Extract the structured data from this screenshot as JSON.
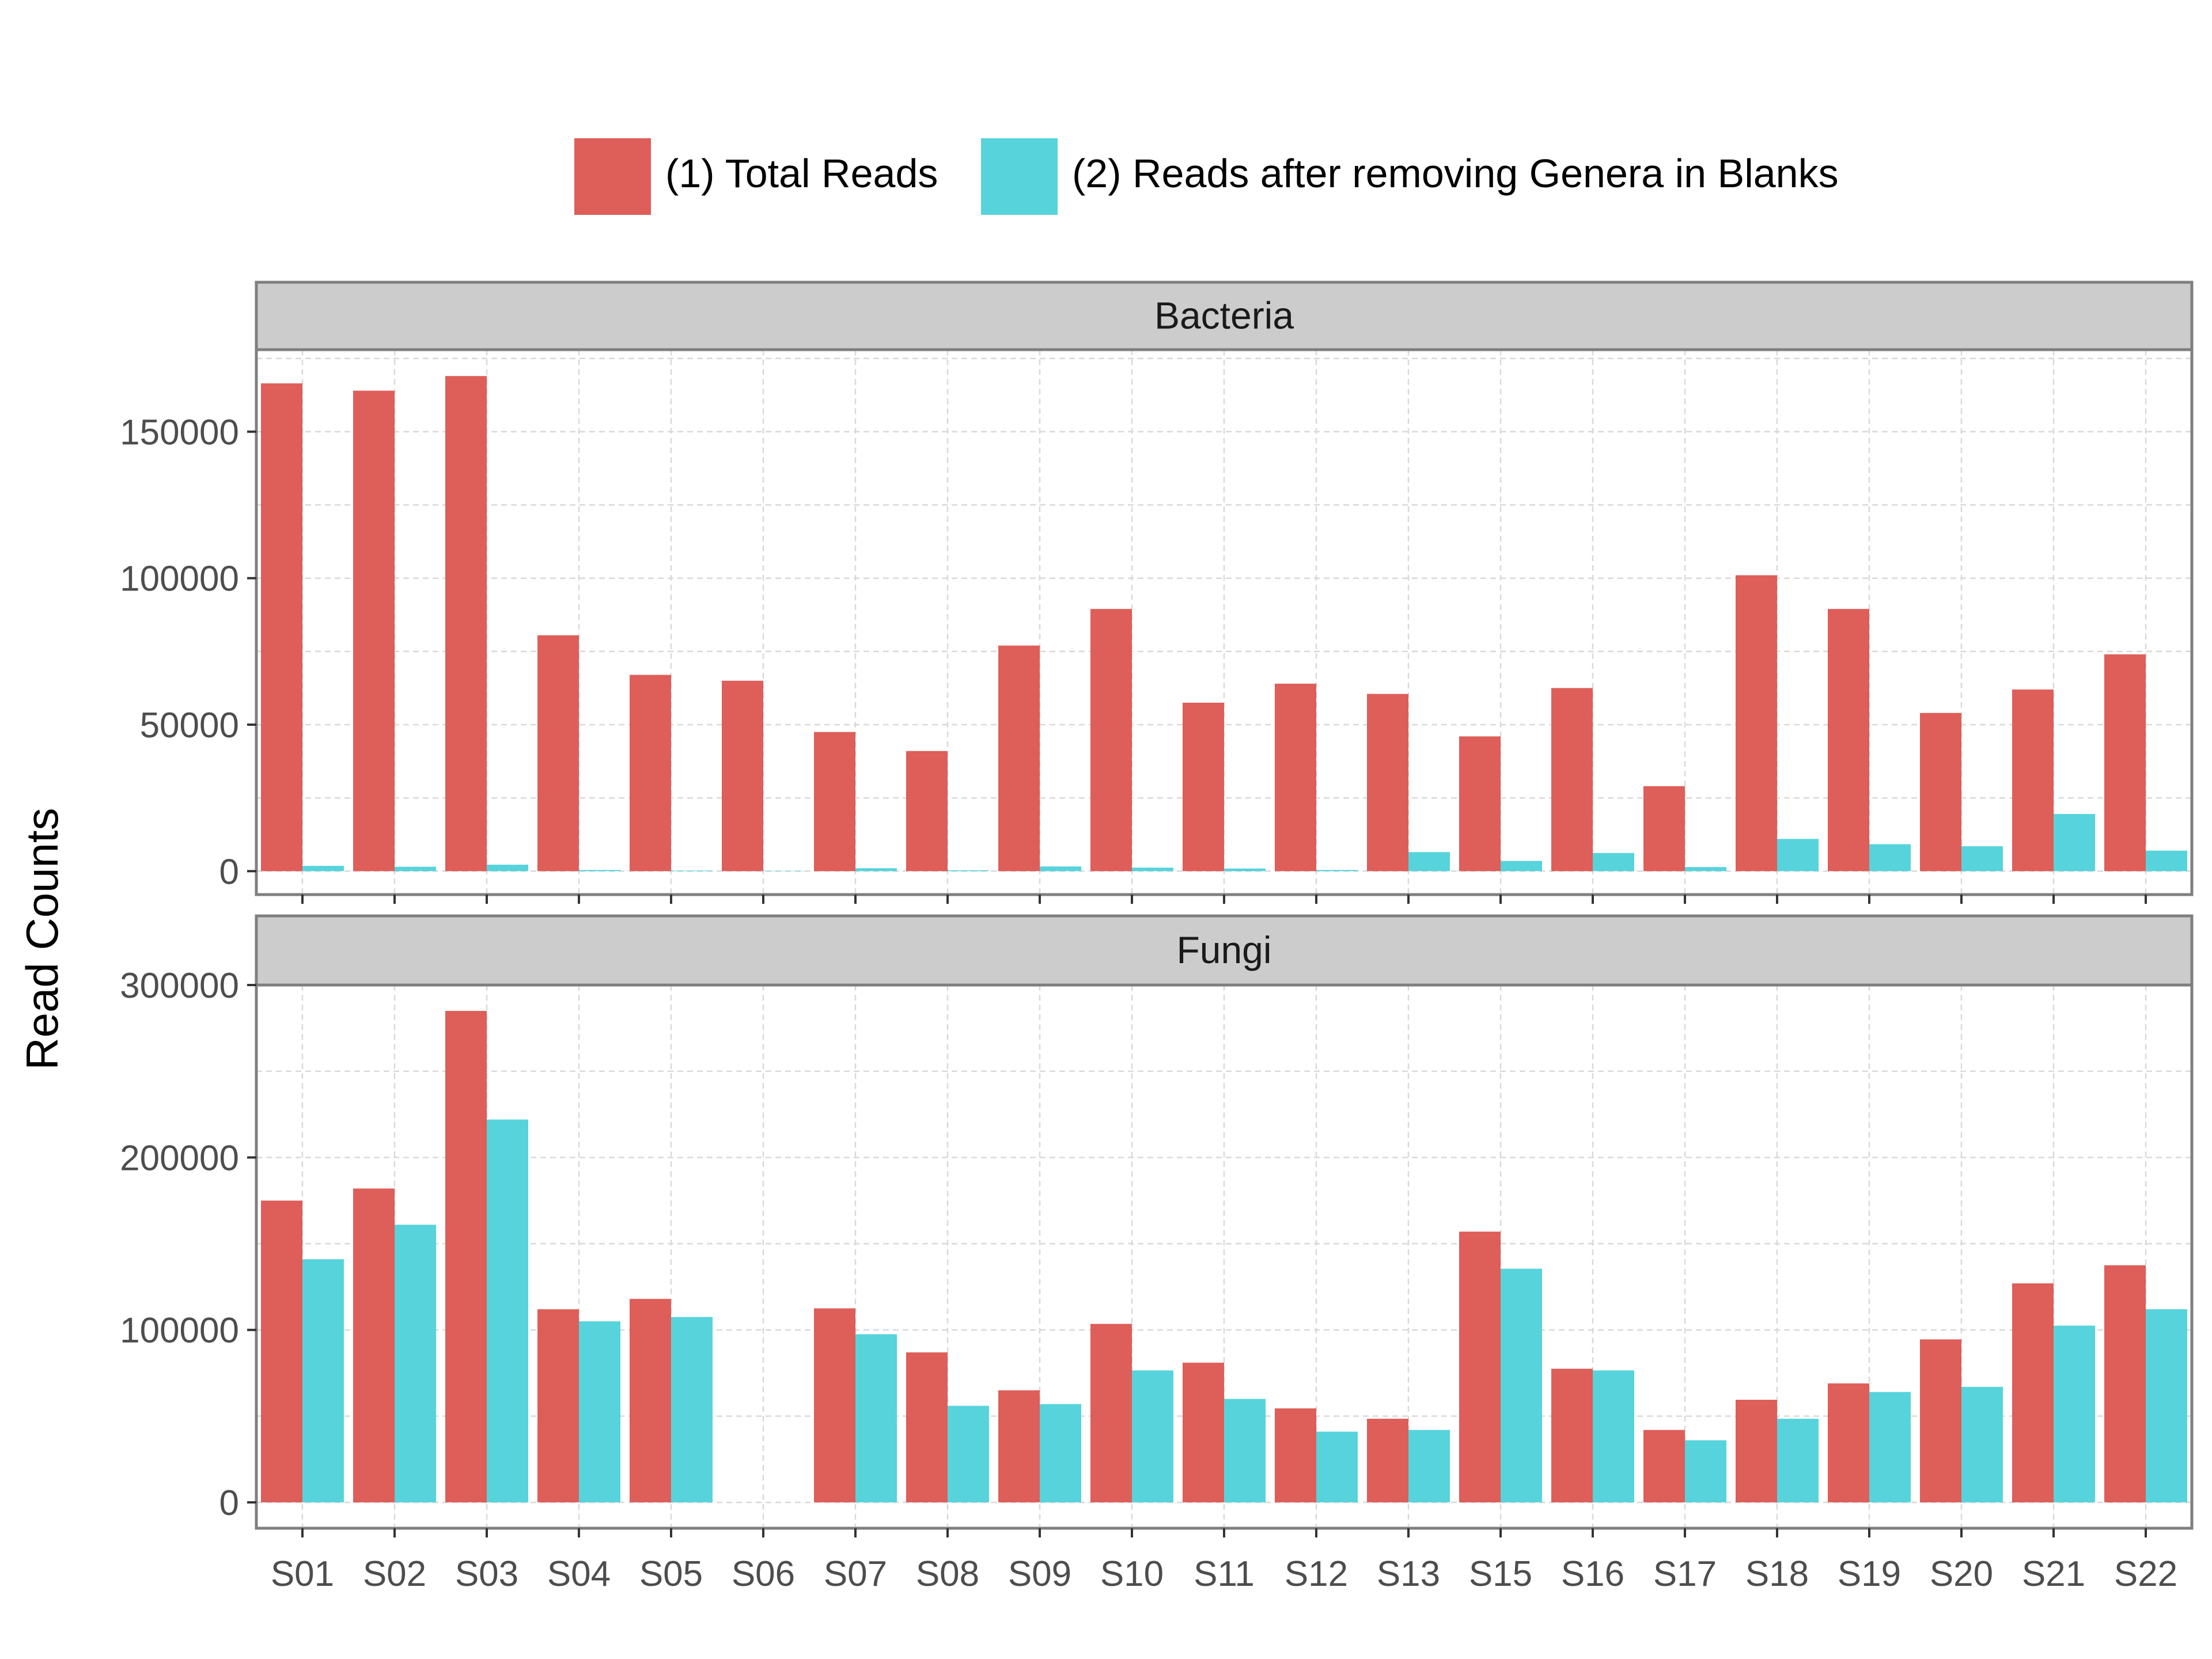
{
  "chart_data": {
    "type": "bar",
    "ylabel": "Read Counts",
    "legend": {
      "position": "top",
      "entries": [
        {
          "name": "(1) Total Reads",
          "color": "#de5e59"
        },
        {
          "name": "(2) Reads after removing Genera in Blanks",
          "color": "#57d3db"
        }
      ]
    },
    "grid": true,
    "categories": [
      "S01",
      "S02",
      "S03",
      "S04",
      "S05",
      "S06",
      "S07",
      "S08",
      "S09",
      "S10",
      "S11",
      "S12",
      "S13",
      "S15",
      "S16",
      "S17",
      "S18",
      "S19",
      "S20",
      "S21",
      "S22"
    ],
    "panels": [
      {
        "title": "Bacteria",
        "ylim": [
          -8000,
          178000
        ],
        "yticks": [
          0,
          50000,
          100000,
          150000
        ],
        "ytick_labels": [
          "0",
          "50000",
          "100000",
          "150000"
        ],
        "series": [
          {
            "name": "(1) Total Reads",
            "values": [
              166500,
              164000,
              169000,
              80500,
              67000,
              65000,
              47500,
              41000,
              77000,
              89500,
              57500,
              64000,
              60500,
              46000,
              62500,
              29000,
              101000,
              89500,
              54000,
              62000,
              74000
            ]
          },
          {
            "name": "(2) Reads after removing Genera in Blanks",
            "values": [
              1800,
              1500,
              2200,
              400,
              200,
              100,
              1000,
              300,
              1600,
              1200,
              900,
              400,
              6500,
              3500,
              6200,
              1400,
              11000,
              9200,
              8500,
              19500,
              7000
            ]
          }
        ]
      },
      {
        "title": "Fungi",
        "ylim": [
          -15000,
          300000
        ],
        "yticks": [
          0,
          100000,
          200000,
          300000
        ],
        "ytick_labels": [
          "0",
          "100000",
          "200000",
          "300000"
        ],
        "series": [
          {
            "name": "(1) Total Reads",
            "values": [
              175000,
              182000,
              285000,
              112000,
              118000,
              0,
              112500,
              87000,
              65000,
              103500,
              81000,
              54500,
              48500,
              157000,
              77500,
              42000,
              59500,
              69000,
              94500,
              127000,
              137500
            ]
          },
          {
            "name": "(2) Reads after removing Genera in Blanks",
            "values": [
              141000,
              161000,
              222000,
              105000,
              107500,
              0,
              97500,
              56000,
              57000,
              76500,
              60000,
              41000,
              42000,
              135500,
              76500,
              36000,
              48500,
              64000,
              67000,
              102500,
              112000
            ]
          }
        ]
      }
    ]
  }
}
